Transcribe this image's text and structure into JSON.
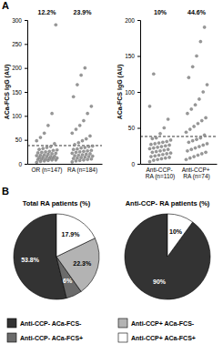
{
  "chart_data": [
    {
      "type": "strip",
      "panel": "A",
      "y_label": "ACa-FCS IgG (AU)",
      "categories": [
        "OR (n=147)",
        "RA (n=184)"
      ],
      "values": [
        [
          3,
          5,
          6,
          7,
          8,
          8,
          9,
          10,
          10,
          11,
          12,
          12,
          13,
          14,
          15,
          15,
          16,
          17,
          18,
          19,
          20,
          21,
          22,
          23,
          24,
          25,
          26,
          28,
          29,
          30,
          32,
          34,
          36,
          42,
          48,
          55,
          64,
          80,
          105,
          290
        ],
        [
          4,
          6,
          7,
          8,
          9,
          10,
          11,
          12,
          13,
          14,
          15,
          16,
          17,
          18,
          19,
          20,
          21,
          22,
          24,
          25,
          26,
          27,
          28,
          30,
          31,
          33,
          34,
          36,
          37,
          40,
          44,
          48,
          52,
          58,
          64,
          72,
          80,
          90,
          105,
          120,
          140,
          165,
          185,
          200
        ]
      ],
      "annotations": [
        {
          "value": 12.2,
          "label": "12.2%"
        },
        {
          "value": 23.9,
          "label": "23.9%"
        }
      ],
      "threshold": 38,
      "color": "#9a9a9a",
      "ylim": [
        0,
        300
      ],
      "yticks": [
        0,
        50,
        100,
        150,
        200,
        250,
        300
      ]
    },
    {
      "type": "strip",
      "y_label": "ACa-FCS IgG (AU)",
      "categories": [
        "Anti-CCP- RA (n=110)",
        "Anti-CCP+ RA (n=74)"
      ],
      "values": [
        [
          3,
          5,
          6,
          7,
          8,
          9,
          10,
          11,
          12,
          13,
          14,
          15,
          16,
          17,
          18,
          19,
          20,
          21,
          22,
          23,
          24,
          25,
          26,
          27,
          28,
          29,
          30,
          31,
          33,
          35,
          36,
          42,
          50,
          62,
          80,
          125
        ],
        [
          6,
          8,
          10,
          12,
          14,
          16,
          18,
          20,
          22,
          24,
          26,
          28,
          30,
          32,
          34,
          36,
          40,
          44,
          48,
          52,
          56,
          60,
          64,
          70,
          76,
          82,
          90,
          100,
          110,
          120,
          135,
          150,
          170,
          190
        ]
      ],
      "annotations": [
        {
          "value": 10,
          "label": "10%"
        },
        {
          "value": 44.6,
          "label": "44.6%"
        }
      ],
      "threshold": 38,
      "color": "#9a9a9a",
      "ylim": [
        0,
        200
      ],
      "yticks": [
        0,
        50,
        100,
        150,
        200
      ]
    },
    {
      "type": "pie",
      "panel": "B",
      "title": "Total RA patients (%)",
      "categories": [
        "Anti-CCP- ACa-FCS-",
        "Anti-CCP- ACa-FCS+",
        "Anti-CCP+ ACa-FCS-",
        "Anti-CCP+ ACa-FCS+"
      ],
      "values": [
        53.8,
        6,
        22.3,
        17.9
      ],
      "value_labels": [
        "53.8%",
        "6%",
        "22.3%",
        "17.9%"
      ],
      "colors": [
        "#333333",
        "#6b6b6b",
        "#b3b3b3",
        "#ffffff"
      ],
      "data_labels": true,
      "legend": "bottom"
    },
    {
      "type": "pie",
      "title": "Anti-CCP- RA patients (%)",
      "values": [
        90,
        10
      ],
      "value_labels": [
        "90%",
        "10%"
      ],
      "colors": [
        "#333333",
        "#ffffff"
      ],
      "data_labels": true
    }
  ]
}
